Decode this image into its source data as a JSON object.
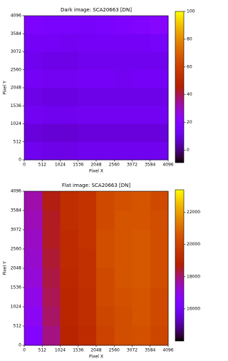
{
  "chart_data": [
    {
      "type": "heatmap",
      "title": "Dark image: SCA20663 [DN]",
      "xlabel": "Pixel X",
      "ylabel": "Pixel Y",
      "xlim": [
        0,
        4096
      ],
      "ylim": [
        0,
        4096
      ],
      "xticks": [
        0,
        512,
        1024,
        1536,
        2048,
        2560,
        3072,
        3584,
        4096
      ],
      "yticks": [
        0,
        512,
        1024,
        1536,
        2048,
        2560,
        3072,
        3584,
        4096
      ],
      "colormap": "gnuplot",
      "clim": [
        -9,
        100
      ],
      "cbar_ticks": [
        0,
        20,
        40,
        60,
        80,
        100
      ],
      "values": [
        [
          17,
          16,
          16,
          15,
          16,
          17,
          19,
          21
        ],
        [
          14,
          14,
          13,
          14,
          14,
          14,
          14,
          15
        ],
        [
          12,
          11,
          11,
          12,
          12,
          12,
          12,
          12
        ],
        [
          14,
          13,
          13,
          14,
          14,
          13,
          14,
          14
        ],
        [
          11,
          10,
          10,
          11,
          11,
          11,
          11,
          11
        ],
        [
          13,
          12,
          12,
          13,
          13,
          13,
          13,
          13
        ],
        [
          9,
          8,
          8,
          9,
          9,
          9,
          9,
          9
        ],
        [
          12,
          11,
          11,
          12,
          12,
          12,
          12,
          12
        ]
      ]
    },
    {
      "type": "heatmap",
      "title": "Flat image: SCA20663 [DN]",
      "xlabel": "Pixel X",
      "ylabel": "Pixel Y",
      "xlim": [
        0,
        4096
      ],
      "ylim": [
        0,
        4096
      ],
      "xticks": [
        0,
        512,
        1024,
        1536,
        2048,
        2560,
        3072,
        3584,
        4096
      ],
      "yticks": [
        0,
        512,
        1024,
        1536,
        2048,
        2560,
        3072,
        3584,
        4096
      ],
      "colormap": "gnuplot",
      "clim": [
        14000,
        23400
      ],
      "cbar_ticks": [
        16000,
        18000,
        20000,
        22000
      ],
      "values": [
        [
          17600,
          18600,
          19300,
          19500,
          20200,
          20400,
          20500,
          20200
        ],
        [
          17500,
          18500,
          19300,
          19500,
          20200,
          20500,
          20500,
          20300
        ],
        [
          17400,
          18500,
          19200,
          19500,
          20300,
          20500,
          20600,
          20300
        ],
        [
          17300,
          18400,
          19200,
          19400,
          20300,
          20500,
          20600,
          20300
        ],
        [
          17200,
          18300,
          19100,
          19400,
          20200,
          20500,
          20600,
          20300
        ],
        [
          17000,
          18200,
          19000,
          19300,
          20200,
          20400,
          20500,
          20200
        ],
        [
          16800,
          18100,
          19000,
          19300,
          20100,
          20300,
          20500,
          20200
        ],
        [
          16500,
          17900,
          18900,
          19200,
          20000,
          20300,
          20400,
          20100
        ]
      ]
    }
  ]
}
